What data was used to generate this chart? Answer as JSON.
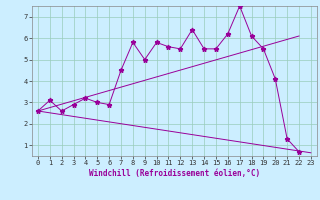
{
  "title": "",
  "xlabel": "Windchill (Refroidissement éolien,°C)",
  "ylabel": "",
  "bg_color": "#cceeff",
  "line_color": "#990099",
  "grid_color": "#99ccbb",
  "xlim": [
    -0.5,
    23.5
  ],
  "ylim": [
    0.5,
    7.5
  ],
  "xticks": [
    0,
    1,
    2,
    3,
    4,
    5,
    6,
    7,
    8,
    9,
    10,
    11,
    12,
    13,
    14,
    15,
    16,
    17,
    18,
    19,
    20,
    21,
    22,
    23
  ],
  "yticks": [
    1,
    2,
    3,
    4,
    5,
    6,
    7
  ],
  "line1_x": [
    0,
    1,
    2,
    3,
    4,
    5,
    6,
    7,
    8,
    9,
    10,
    11,
    12,
    13,
    14,
    15,
    16,
    17,
    18,
    19,
    20,
    21,
    22
  ],
  "line1_y": [
    2.6,
    3.1,
    2.6,
    2.9,
    3.2,
    3.0,
    2.9,
    4.5,
    5.8,
    5.0,
    5.8,
    5.6,
    5.5,
    6.4,
    5.5,
    5.5,
    6.2,
    7.5,
    6.1,
    5.5,
    4.1,
    1.3,
    0.7
  ],
  "line2_x": [
    0,
    22
  ],
  "line2_y": [
    2.6,
    6.1
  ],
  "line3_x": [
    0,
    23
  ],
  "line3_y": [
    2.6,
    0.65
  ],
  "xlabel_fontsize": 5.5,
  "tick_fontsize": 5.0
}
